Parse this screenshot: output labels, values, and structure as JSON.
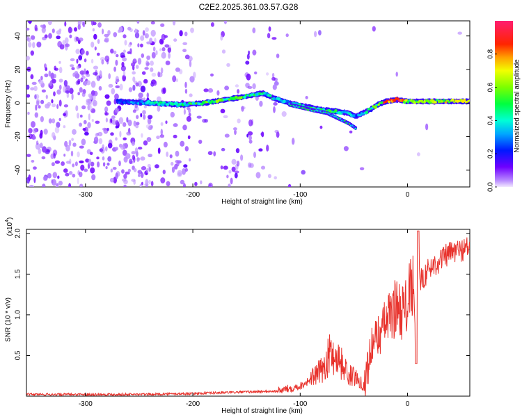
{
  "title": "C2E2.2025.361.03.57.G28",
  "chart_data": [
    {
      "type": "heatmap",
      "title": "C2E2.2025.361.03.57.G28",
      "xlabel": "Height of straight line (km)",
      "ylabel": "Frequency (Hz)",
      "xlim": [
        -355,
        58
      ],
      "ylim": [
        -50,
        49
      ],
      "xticks": [
        -300,
        -200,
        -100,
        0
      ],
      "xtick_labels": [
        "-300",
        "-200",
        "-100",
        "0"
      ],
      "yticks": [
        -40,
        -20,
        0,
        20,
        40
      ],
      "ytick_labels": [
        "-40",
        "-20",
        "0",
        "20",
        "40"
      ],
      "colorbar": {
        "label": "Normalized spectral amplitude",
        "range": [
          0,
          1
        ],
        "ticks": [
          0.0,
          0.2,
          0.4,
          0.6,
          0.8
        ],
        "tick_labels": [
          "0.0",
          "0.2",
          "0.4",
          "0.6",
          "0.8"
        ]
      },
      "ridge": {
        "name": "dominant frequency track",
        "x": [
          -270,
          -240,
          -210,
          -190,
          -170,
          -150,
          -135,
          -125,
          -110,
          -95,
          -80,
          -65,
          -55,
          -48,
          -42,
          -35,
          -28,
          -20,
          -10,
          0,
          20,
          40,
          58
        ],
        "y": [
          1,
          0,
          -1,
          0,
          2,
          4,
          6,
          3,
          0,
          -2,
          -4,
          -5,
          -6,
          -8,
          -6,
          -4,
          -1,
          1,
          2,
          1,
          1,
          1,
          1
        ],
        "amplitude": [
          0.25,
          0.4,
          0.45,
          0.5,
          0.55,
          0.5,
          0.45,
          0.4,
          0.35,
          0.45,
          0.5,
          0.45,
          0.4,
          0.3,
          0.35,
          0.45,
          0.6,
          0.85,
          0.9,
          0.55,
          0.6,
          0.7,
          0.6
        ]
      },
      "branch": {
        "name": "descending branch",
        "x": [
          -110,
          -90,
          -75,
          -65,
          -55,
          -48
        ],
        "y": [
          -1,
          -4,
          -6,
          -9,
          -12,
          -15
        ]
      }
    },
    {
      "type": "line",
      "xlabel": "Height of straight line (km)",
      "ylabel": "SNR (10 * v/v)",
      "yscale_label": "(x10",
      "yscale_exp": "4",
      "yscale_close": ")",
      "xlim": [
        -355,
        58
      ],
      "ylim": [
        0,
        2.05
      ],
      "xticks": [
        -300,
        -200,
        -100,
        0
      ],
      "xtick_labels": [
        "-300",
        "-200",
        "-100",
        "0"
      ],
      "yticks": [
        0.5,
        1.0,
        1.5,
        2.0
      ],
      "ytick_labels": [
        "0.5",
        "1.0",
        "1.5",
        "2.0"
      ],
      "series": [
        {
          "name": "SNR",
          "color": "#e8322c",
          "x": [
            -355,
            -300,
            -250,
            -200,
            -150,
            -120,
            -100,
            -90,
            -80,
            -72,
            -65,
            -55,
            -45,
            -40,
            -35,
            -30,
            -25,
            -20,
            -15,
            -10,
            -5,
            0,
            5,
            8,
            10,
            15,
            20,
            30,
            40,
            50,
            58
          ],
          "y": [
            0.02,
            0.02,
            0.02,
            0.03,
            0.05,
            0.06,
            0.12,
            0.2,
            0.3,
            0.5,
            0.45,
            0.25,
            0.2,
            0.1,
            0.5,
            0.7,
            0.75,
            0.9,
            0.95,
            1.1,
            1.0,
            1.1,
            1.35,
            0.4,
            1.4,
            1.45,
            1.55,
            1.65,
            1.75,
            1.78,
            1.82
          ]
        }
      ]
    }
  ]
}
